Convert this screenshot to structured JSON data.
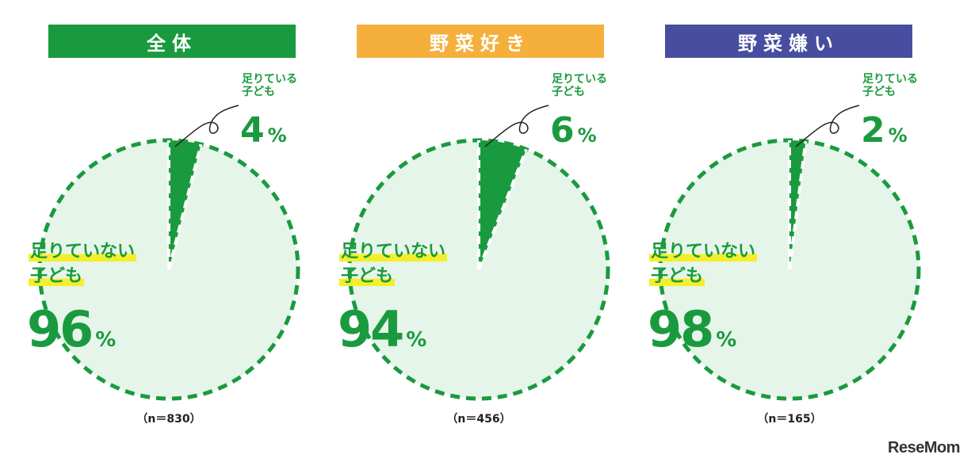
{
  "chart_data": [
    {
      "type": "pie",
      "title": "全体",
      "slices": [
        {
          "label": "足りている子ども",
          "value": 4
        },
        {
          "label": "足りていない子ども",
          "value": 96
        }
      ],
      "n_label": "（n＝830）",
      "header_color": "#1a9a3e"
    },
    {
      "type": "pie",
      "title": "野菜好き",
      "slices": [
        {
          "label": "足りている子ども",
          "value": 6
        },
        {
          "label": "足りていない子ども",
          "value": 94
        }
      ],
      "n_label": "（n＝456）",
      "header_color": "#f5b03c"
    },
    {
      "type": "pie",
      "title": "野菜嫌い",
      "slices": [
        {
          "label": "足りている子ども",
          "value": 2
        },
        {
          "label": "足りていない子ども",
          "value": 98
        }
      ],
      "n_label": "（n＝165）",
      "header_color": "#474ea0"
    }
  ],
  "labels": {
    "enough_line1": "足りている",
    "enough_line2": "子ども",
    "not_enough_line1": "足りていない",
    "not_enough_line2": "子ども",
    "percent_sign": "%"
  },
  "colors": {
    "slice_fill": "#1a9a3e",
    "pie_bg": "#e6f5ea",
    "dash": "#1a9a3e",
    "highlight": "#f4ef2a"
  },
  "logo": "ReseMom"
}
